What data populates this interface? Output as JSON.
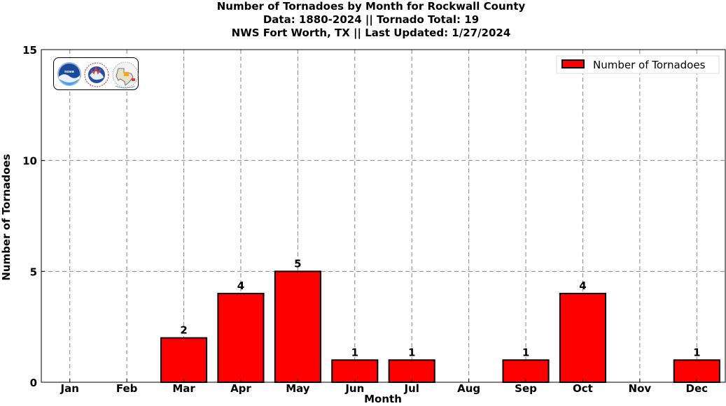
{
  "title": {
    "line1": "Number of Tornadoes by Month for Rockwall County",
    "line2": "Data: 1880-2024 || Tornado Total: 19",
    "line3": "NWS Fort Worth, TX || Last Updated: 1/27/2024"
  },
  "logos": [
    "noaa-logo",
    "national-weather-service-logo",
    "nws-fort-worth-texas-logo"
  ],
  "chart_data": {
    "type": "bar",
    "categories": [
      "Jan",
      "Feb",
      "Mar",
      "Apr",
      "May",
      "Jun",
      "Jul",
      "Aug",
      "Sep",
      "Oct",
      "Nov",
      "Dec"
    ],
    "series": [
      {
        "name": "Number of Tornadoes",
        "values": [
          0,
          0,
          2,
          4,
          5,
          1,
          1,
          0,
          1,
          4,
          0,
          1
        ]
      }
    ],
    "data_labels": [
      "",
      "",
      "2",
      "4",
      "5",
      "1",
      "1",
      "",
      "1",
      "4",
      "",
      "1"
    ],
    "xlabel": "Month",
    "ylabel": "Number of Tornadoes",
    "ylim": [
      0,
      15
    ],
    "yticks": [
      0,
      5,
      10,
      15
    ],
    "grid": true,
    "legend": "top-right",
    "colors": {
      "bar": "#ff0000",
      "bar_edge": "#000000",
      "grid": "#888888"
    }
  }
}
